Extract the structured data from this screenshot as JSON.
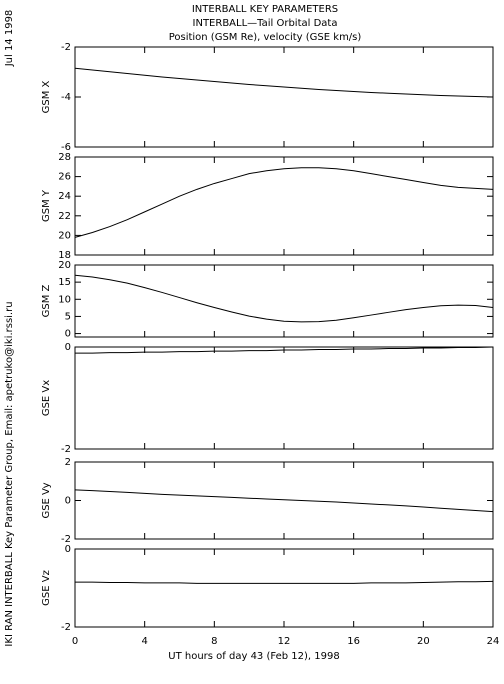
{
  "header": {
    "lines": [
      "INTERBALL KEY PARAMETERS",
      "INTERBALL—Tail Orbital Data",
      "Position (GSM Re), velocity (GSE km/s)"
    ]
  },
  "side": {
    "date": "Jul 14 1998",
    "credit": "IKI RAN INTERBALL Key Parameter Group, Email: apetruko@iki.rssi.ru"
  },
  "chart_data": [
    {
      "type": "line",
      "ylabel": "GSM X",
      "color": "#000000",
      "ylim": [
        -6,
        -2
      ],
      "yticks": [
        -6,
        -4,
        -2
      ],
      "xlim": [
        0,
        24
      ],
      "xticks": [
        0,
        4,
        8,
        12,
        16,
        20,
        24
      ],
      "x": [
        0,
        1,
        2,
        3,
        4,
        5,
        6,
        7,
        8,
        9,
        10,
        11,
        12,
        13,
        14,
        15,
        16,
        17,
        18,
        19,
        20,
        21,
        22,
        23,
        24
      ],
      "values": [
        -2.85,
        -2.92,
        -2.99,
        -3.06,
        -3.13,
        -3.2,
        -3.26,
        -3.32,
        -3.38,
        -3.44,
        -3.5,
        -3.55,
        -3.6,
        -3.65,
        -3.7,
        -3.74,
        -3.78,
        -3.82,
        -3.85,
        -3.88,
        -3.91,
        -3.94,
        -3.96,
        -3.98,
        -4.0
      ]
    },
    {
      "type": "line",
      "ylabel": "GSM Y",
      "color": "#000000",
      "ylim": [
        18,
        28
      ],
      "yticks": [
        18,
        20,
        22,
        24,
        26,
        28
      ],
      "xlim": [
        0,
        24
      ],
      "xticks": [
        0,
        4,
        8,
        12,
        16,
        20,
        24
      ],
      "x": [
        0,
        1,
        2,
        3,
        4,
        5,
        6,
        7,
        8,
        9,
        10,
        11,
        12,
        13,
        14,
        15,
        16,
        17,
        18,
        19,
        20,
        21,
        22,
        23,
        24
      ],
      "values": [
        19.8,
        20.3,
        20.9,
        21.6,
        22.4,
        23.2,
        24.0,
        24.7,
        25.3,
        25.8,
        26.3,
        26.6,
        26.8,
        26.9,
        26.9,
        26.8,
        26.6,
        26.3,
        26.0,
        25.7,
        25.4,
        25.1,
        24.9,
        24.8,
        24.7
      ]
    },
    {
      "type": "line",
      "ylabel": "GSM Z",
      "color": "#000000",
      "ylim": [
        -1,
        20
      ],
      "yticks": [
        0,
        5,
        10,
        15,
        20
      ],
      "xlim": [
        0,
        24
      ],
      "xticks": [
        0,
        4,
        8,
        12,
        16,
        20,
        24
      ],
      "x": [
        0,
        1,
        2,
        3,
        4,
        5,
        6,
        7,
        8,
        9,
        10,
        11,
        12,
        13,
        14,
        15,
        16,
        17,
        18,
        19,
        20,
        21,
        22,
        23,
        24
      ],
      "values": [
        17,
        16.5,
        15.7,
        14.7,
        13.4,
        12.0,
        10.5,
        9.0,
        7.6,
        6.3,
        5.1,
        4.2,
        3.6,
        3.4,
        3.5,
        3.9,
        4.6,
        5.4,
        6.2,
        7.0,
        7.6,
        8.1,
        8.3,
        8.2,
        7.6
      ]
    },
    {
      "type": "line",
      "ylabel": "GSE Vx",
      "color": "#000000",
      "ylim": [
        -2,
        0
      ],
      "yticks": [
        -2,
        0
      ],
      "xlim": [
        0,
        24
      ],
      "xticks": [
        0,
        4,
        8,
        12,
        16,
        20,
        24
      ],
      "x": [
        0,
        1,
        2,
        3,
        4,
        5,
        6,
        7,
        8,
        9,
        10,
        11,
        12,
        13,
        14,
        15,
        16,
        17,
        18,
        19,
        20,
        21,
        22,
        23,
        24
      ],
      "values": [
        -0.12,
        -0.12,
        -0.11,
        -0.11,
        -0.1,
        -0.1,
        -0.09,
        -0.09,
        -0.08,
        -0.08,
        -0.07,
        -0.07,
        -0.06,
        -0.06,
        -0.05,
        -0.05,
        -0.04,
        -0.04,
        -0.03,
        -0.03,
        -0.02,
        -0.02,
        -0.01,
        -0.01,
        0.0
      ]
    },
    {
      "type": "line",
      "ylabel": "GSE Vy",
      "color": "#000000",
      "ylim": [
        -2,
        2
      ],
      "yticks": [
        -2,
        0,
        2
      ],
      "xlim": [
        0,
        24
      ],
      "xticks": [
        0,
        4,
        8,
        12,
        16,
        20,
        24
      ],
      "x": [
        0,
        1,
        2,
        3,
        4,
        5,
        6,
        7,
        8,
        9,
        10,
        11,
        12,
        13,
        14,
        15,
        16,
        17,
        18,
        19,
        20,
        21,
        22,
        23,
        24
      ],
      "values": [
        0.55,
        0.51,
        0.47,
        0.42,
        0.37,
        0.32,
        0.28,
        0.24,
        0.2,
        0.16,
        0.12,
        0.08,
        0.04,
        0.0,
        -0.04,
        -0.08,
        -0.13,
        -0.18,
        -0.23,
        -0.28,
        -0.34,
        -0.4,
        -0.46,
        -0.52,
        -0.58
      ]
    },
    {
      "type": "line",
      "ylabel": "GSE Vz",
      "color": "#000000",
      "ylim": [
        -2,
        0
      ],
      "yticks": [
        -2,
        0
      ],
      "xlim": [
        0,
        24
      ],
      "xticks": [
        0,
        4,
        8,
        12,
        16,
        20,
        24
      ],
      "xlabel": "UT hours of day  43 (Feb 12), 1998",
      "x": [
        0,
        1,
        2,
        3,
        4,
        5,
        6,
        7,
        8,
        9,
        10,
        11,
        12,
        13,
        14,
        15,
        16,
        17,
        18,
        19,
        20,
        21,
        22,
        23,
        24
      ],
      "values": [
        -0.85,
        -0.85,
        -0.86,
        -0.86,
        -0.87,
        -0.87,
        -0.87,
        -0.88,
        -0.88,
        -0.88,
        -0.88,
        -0.88,
        -0.88,
        -0.88,
        -0.88,
        -0.88,
        -0.88,
        -0.87,
        -0.87,
        -0.87,
        -0.86,
        -0.85,
        -0.84,
        -0.84,
        -0.83
      ]
    }
  ]
}
